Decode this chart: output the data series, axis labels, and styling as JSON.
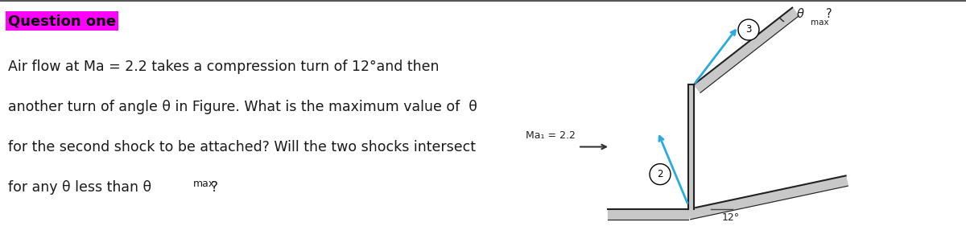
{
  "title": "Question one",
  "title_bg_color": "#FF00FF",
  "title_text_color": "#000000",
  "body_text_line1": "Air flow at Ma = 2.2 takes a compression turn of 12°and then",
  "body_text_line2": "another turn of angle θ in Figure. What is the maximum value of  θ",
  "body_text_line3": "for the second shock to be attached? Will the two shocks intersect",
  "body_text_line4": "for any θ less than θ",
  "body_text_line4_sub": "max",
  "body_text_line4_end": "?",
  "fig_label_ma": "Ma₁ = 2.2",
  "fig_label_12deg": "12°",
  "fig_label_thetamax": "θ",
  "fig_label_thetamax_sub": "max",
  "fig_label_thetamax_end": "?",
  "fig_label_2": "2",
  "fig_label_3": "3",
  "background_color": "#ffffff",
  "arrow_color": "#29ABE2",
  "diagram_line_color": "#000000",
  "diagram_fill_color": "#c8c8c8"
}
